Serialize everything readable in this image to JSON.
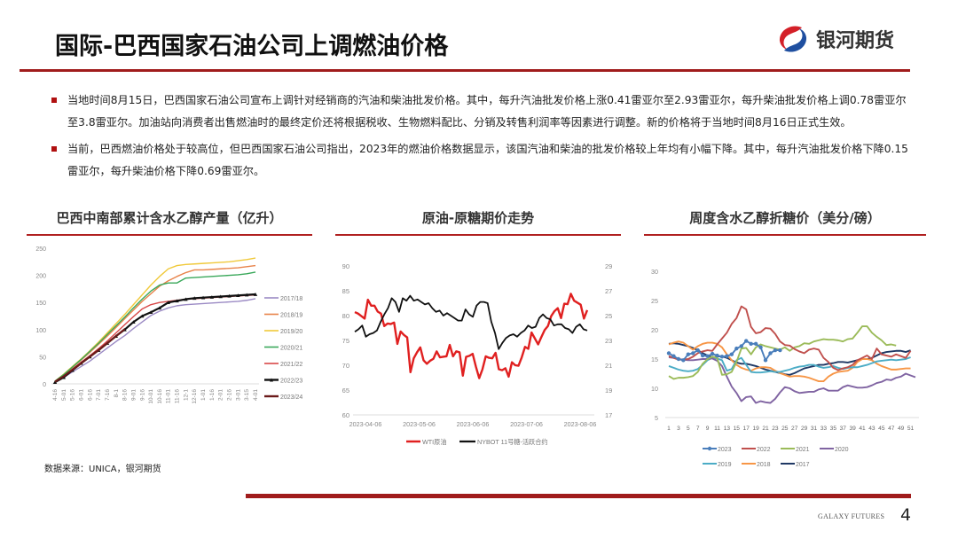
{
  "header": {
    "title": "国际-巴西国家石油公司上调燃油价格",
    "logo_text": "银河期货",
    "logo_icon": "galaxy-futures-logo-icon",
    "accent_color": "#a01c1c"
  },
  "bullets": [
    {
      "text": "当地时间8月15日，巴西国家石油公司宣布上调针对经销商的汽油和柴油批发价格。其中，每升汽油批发价格上涨0.41雷亚尔至2.93雷亚尔，每升柴油批发价格上调0.78雷亚尔至3.8雷亚尔。加油站向消费者出售燃油时的最终定价还将根据税收、生物燃料配比、分销及转售利润率等因素进行调整。新的价格将于当地时间8月16日正式生效。"
    },
    {
      "text": "当前，巴西燃油价格处于较高位，但巴西国家石油公司指出，2023年的燃油价格数据显示，该国汽油和柴油的批发价格较上年均有小幅下降。其中，每升汽油批发价格下降0.15雷亚尔，每升柴油价格下降0.69雷亚尔。"
    }
  ],
  "source": "数据来源：UNICA，银河期货",
  "footer": {
    "brand": "GALAXY FUTURES",
    "page": "4"
  },
  "chart_data": [
    {
      "type": "line",
      "title": "巴西中南部累计含水乙醇产量（亿升）",
      "xlabel": "",
      "ylabel": "",
      "ylim": [
        0,
        250
      ],
      "yticks": [
        0,
        50,
        100,
        150,
        200,
        250
      ],
      "categories": [
        "4-16",
        "5-01",
        "5-16",
        "6-01",
        "6-16",
        "7-01",
        "7-16",
        "8-1",
        "8-16",
        "9-01",
        "9-16",
        "10-01",
        "10-16",
        "11-01",
        "11-16",
        "12-1",
        "12-16",
        "1-01",
        "1-16",
        "2-01",
        "2-16",
        "3-01",
        "3-15",
        "4-01"
      ],
      "legend_position": "right",
      "series": [
        {
          "name": "2017/18",
          "color": "#9b8ac4",
          "values": [
            3,
            12,
            22,
            32,
            42,
            54,
            66,
            78,
            89,
            102,
            114,
            126,
            134,
            140,
            144,
            146,
            147,
            148,
            149,
            150,
            151,
            152,
            154,
            157
          ]
        },
        {
          "name": "2018/19",
          "color": "#e8834a",
          "values": [
            4,
            16,
            30,
            44,
            58,
            73,
            88,
            104,
            120,
            136,
            152,
            166,
            180,
            190,
            198,
            205,
            210,
            210,
            211,
            212,
            213,
            214,
            216,
            218
          ]
        },
        {
          "name": "2019/20",
          "color": "#f0c93a",
          "values": [
            5,
            18,
            32,
            46,
            61,
            77,
            94,
            111,
            128,
            146,
            164,
            182,
            198,
            212,
            218,
            220,
            221,
            222,
            223,
            224,
            225,
            227,
            229,
            232
          ]
        },
        {
          "name": "2020/21",
          "color": "#3aa85a",
          "values": [
            5,
            17,
            31,
            45,
            60,
            75,
            91,
            107,
            123,
            140,
            156,
            171,
            182,
            186,
            186,
            195,
            196,
            197,
            198,
            199,
            200,
            201,
            203,
            206
          ]
        },
        {
          "name": "2021/22",
          "color": "#d84848",
          "values": [
            4,
            14,
            27,
            40,
            52,
            65,
            79,
            94,
            109,
            124,
            138,
            146,
            150,
            152,
            154,
            156,
            157,
            158,
            159,
            160,
            161,
            162,
            163,
            164
          ]
        },
        {
          "name": "2022/23",
          "color": "#111111",
          "marker": "triangle",
          "values": [
            3,
            12,
            25,
            38,
            50,
            62,
            75,
            88,
            100,
            114,
            125,
            132,
            140,
            150,
            153,
            156,
            158,
            159,
            160,
            161,
            162,
            163,
            164,
            165
          ]
        },
        {
          "name": "2023/24",
          "color": "#6b1a1a",
          "values": [
            4,
            14,
            26,
            38,
            50,
            62,
            75,
            88,
            101
          ]
        }
      ]
    },
    {
      "type": "line",
      "title": "原油-原糖期价走势",
      "x_ticks": [
        "2023-04-06",
        "2023-05-06",
        "2023-06-06",
        "2023-07-06",
        "2023-08-06"
      ],
      "ylim": [
        60,
        90
      ],
      "yticks": [
        60,
        65,
        70,
        75,
        80,
        85,
        90
      ],
      "y2lim": [
        17,
        29
      ],
      "y2ticks": [
        17,
        19,
        21,
        23,
        25,
        27,
        29
      ],
      "legend_position": "bottom",
      "series": [
        {
          "name": "WTI原油",
          "color": "#e02020",
          "axis": "left",
          "values": [
            80.7,
            80.4,
            79.9,
            79.4,
            83.2,
            82.0,
            82.0,
            80.8,
            80.4,
            77.9,
            78.4,
            78.3,
            78.6,
            74.3,
            76.8,
            76.1,
            75.6,
            68.6,
            71.4,
            72.6,
            73.6,
            71.0,
            70.3,
            70.9,
            71.3,
            72.8,
            71.6,
            71.7,
            71.8,
            74.1,
            71.8,
            72.8,
            72.6,
            67.9,
            71.7,
            71.9,
            72.3,
            69.7,
            67.4,
            69.2,
            71.8,
            71.5,
            71.4,
            72.5,
            69.2,
            69.0,
            69.4,
            67.7,
            70.6,
            70.0,
            69.9,
            71.6,
            73.7,
            73.3,
            76.6,
            75.4,
            74.2,
            75.7,
            77.1,
            77.9,
            79.9,
            80.9,
            81.5,
            79.5,
            82.4,
            82.3,
            84.4,
            83.0,
            82.6,
            82.2,
            79.4,
            81.1
          ]
        },
        {
          "name": "NYBOT 11号糖-活跃合约",
          "color": "#111111",
          "axis": "right",
          "values": [
            23.7,
            23.9,
            24.2,
            23.3,
            23.5,
            23.6,
            23.8,
            24.5,
            25.1,
            25.6,
            26.4,
            26.1,
            25.3,
            26.4,
            26.2,
            26.6,
            26.2,
            26.3,
            26.1,
            25.9,
            26.0,
            25.6,
            25.3,
            25.4,
            25.0,
            25.2,
            25.0,
            24.8,
            24.6,
            24.6,
            25.5,
            25.1,
            24.9,
            25.8,
            26.1,
            26.1,
            26.0,
            24.5,
            23.6,
            22.3,
            22.8,
            23.2,
            23.4,
            23.5,
            23.3,
            23.6,
            23.8,
            24.2,
            24.0,
            24.1,
            24.8,
            25.1,
            24.8,
            24.7,
            24.2,
            24.3,
            24.3,
            24.0,
            23.9,
            23.6,
            24.1,
            24.3,
            23.9,
            23.8
          ]
        }
      ]
    },
    {
      "type": "line",
      "title": "周度含水乙醇折糖价（美分/磅）",
      "ylim": [
        5,
        30
      ],
      "yticks": [
        5,
        10,
        15,
        20,
        25,
        30
      ],
      "x_ticks": [
        "1",
        "3",
        "5",
        "7",
        "9",
        "11",
        "13",
        "15",
        "17",
        "19",
        "21",
        "23",
        "25",
        "27",
        "29",
        "31",
        "33",
        "35",
        "37",
        "39",
        "41",
        "43",
        "45",
        "47",
        "49",
        "51"
      ],
      "legend_position": "bottom",
      "series": [
        {
          "name": "2023",
          "color": "#4a7ebb",
          "marker": "circle",
          "values": [
            16.0,
            15.5,
            15.0,
            14.8,
            15.8,
            16.0,
            16.5,
            15.6,
            15.5,
            15.9,
            15.6,
            15.4,
            15.5,
            15.8,
            16.8,
            17.2,
            18.1,
            17.6,
            17.6,
            17.0,
            14.8,
            16.0,
            16.5,
            16.5
          ]
        },
        {
          "name": "2022",
          "color": "#c0504d",
          "values": [
            15.5,
            15.2,
            14.9,
            14.9,
            15.0,
            15.4,
            16.0,
            16.3,
            16.5,
            16.4,
            17.5,
            18.5,
            19.5,
            21.0,
            22.0,
            24.0,
            23.5,
            20.5,
            19.4,
            19.6,
            20.3,
            20.2,
            19.3,
            18.0,
            17.4,
            17.3,
            16.7,
            16.3,
            16.0,
            16.6,
            16.8,
            16.6,
            15.2,
            14.5,
            13.5,
            13.1,
            13.4,
            13.6,
            14.0,
            14.8,
            15.2,
            15.6,
            15.0,
            16.8,
            15.8,
            15.6,
            15.4,
            15.8,
            15.5,
            15.2,
            16.4
          ]
        },
        {
          "name": "2021",
          "color": "#9bbb59",
          "values": [
            12.1,
            11.6,
            11.8,
            11.8,
            11.9,
            12.1,
            12.8,
            14.2,
            15.0,
            15.4,
            15.2,
            12.3,
            12.4,
            12.8,
            14.5,
            16.8,
            16.9,
            15.8,
            17.0,
            17.5,
            17.2,
            17.0,
            16.8,
            16.6,
            17.0,
            16.4,
            17.0,
            17.2,
            17.7,
            17.6,
            18.0,
            18.2,
            18.4,
            18.3,
            18.3,
            18.2,
            18.0,
            18.4,
            18.5,
            19.5,
            20.6,
            20.6,
            19.5,
            18.8,
            18.2,
            17.4,
            17.5,
            17.3
          ]
        },
        {
          "name": "2020",
          "color": "#8064a2",
          "values": [
            15.3,
            15.2,
            15.0,
            14.9,
            14.8,
            14.8,
            14.9,
            15.0,
            15.0,
            15.1,
            14.7,
            13.8,
            12.0,
            10.3,
            9.2,
            7.8,
            8.5,
            8.6,
            7.5,
            7.8,
            7.6,
            7.5,
            8.2,
            9.3,
            10.2,
            10.0,
            9.5,
            9.2,
            9.3,
            9.4,
            9.4,
            9.8,
            10.0,
            9.6,
            9.6,
            9.6,
            10.2,
            10.5,
            10.3,
            10.1,
            10.1,
            10.2,
            10.5,
            10.9,
            11.1,
            11.5,
            11.4,
            11.8,
            12.0,
            12.5,
            12.2,
            11.9
          ]
        },
        {
          "name": "2019",
          "color": "#4bacc6",
          "values": [
            13.8,
            13.5,
            13.2,
            13.0,
            12.9,
            13.0,
            13.3,
            14.0,
            14.8,
            15.2,
            15.1,
            14.8,
            13.0,
            13.3,
            14.8,
            15.2,
            14.0,
            12.8,
            12.7,
            12.7,
            12.8,
            12.9,
            12.8,
            12.8,
            13.0,
            13.2,
            13.5,
            13.7,
            13.8,
            14.0,
            14.0,
            13.7,
            13.5,
            13.6,
            13.8,
            13.5,
            13.3,
            13.5,
            13.6,
            13.6,
            13.8,
            14.0,
            14.3,
            14.6,
            14.7,
            14.8,
            14.9,
            14.8,
            14.9,
            15.0,
            15.3
          ]
        },
        {
          "name": "2018",
          "color": "#f79646",
          "values": [
            17.5,
            17.8,
            18.0,
            17.8,
            17.2,
            16.6,
            17.2,
            17.6,
            17.8,
            17.8,
            17.6,
            17.0,
            15.8,
            14.8,
            14.0,
            13.5,
            13.2,
            13.0,
            13.4,
            13.6,
            13.6,
            13.5,
            13.0,
            12.6,
            12.3,
            12.0,
            12.1,
            12.1,
            12.0,
            11.8,
            11.5,
            11.2,
            11.2,
            12.0,
            12.5,
            12.8,
            12.9,
            13.0,
            13.5,
            14.5,
            15.0,
            15.0,
            14.8,
            14.2,
            13.8,
            13.5,
            13.2,
            13.2,
            13.3,
            13.4,
            13.4
          ]
        },
        {
          "name": "2017",
          "color": "#1f3864",
          "values": [
            17.6,
            17.7,
            17.6,
            17.4,
            17.2,
            16.9,
            16.5,
            16.0,
            15.6,
            15.3,
            15.4,
            15.5,
            15.2,
            14.8,
            14.4,
            14.2,
            14.2,
            14.0,
            13.8,
            13.5,
            13.2,
            13.0,
            12.8,
            12.6,
            12.4,
            12.3,
            12.6,
            13.0,
            13.4,
            13.6,
            13.8,
            14.0,
            14.0,
            14.2,
            14.3,
            14.5,
            14.5,
            14.4,
            14.6,
            14.8,
            15.0,
            15.0,
            15.2,
            15.6,
            16.0,
            16.2,
            16.3,
            16.4,
            16.4,
            16.2,
            16.5
          ]
        }
      ]
    }
  ]
}
